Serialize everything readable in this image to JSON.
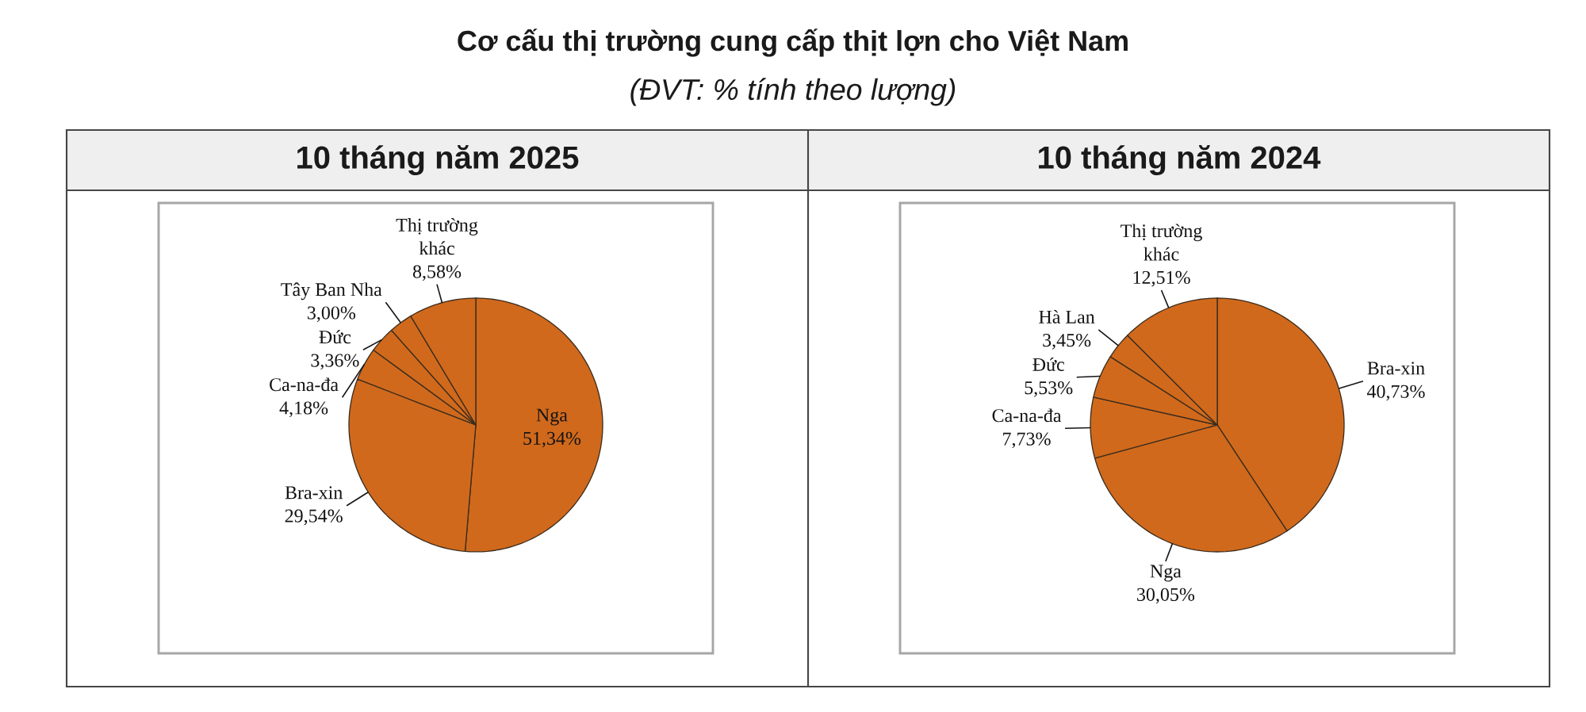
{
  "chart_data": [
    {
      "type": "other",
      "title": "Cơ cấu thị trường cung cấp thịt lợn cho Việt Nam",
      "subtitle": "(ĐVT: % tính theo lượng)"
    },
    {
      "type": "pie",
      "title": "10 tháng năm 2025",
      "categories": [
        "Nga",
        "Bra-xin",
        "Ca-na-đa",
        "Đức",
        "Tây Ban Nha",
        "Thị trường khác"
      ],
      "values": [
        51.34,
        29.54,
        4.18,
        3.36,
        3.0,
        8.58
      ],
      "value_labels": [
        "51,34%",
        "29,54%",
        "4,18%",
        "3,36%",
        "3,00%",
        "8,58%"
      ],
      "colors": [
        "#d0691c",
        "#d0691c",
        "#d0691c",
        "#d0691c",
        "#d0691c",
        "#d0691c"
      ]
    },
    {
      "type": "pie",
      "title": "10 tháng năm 2024",
      "categories": [
        "Bra-xin",
        "Nga",
        "Ca-na-đa",
        "Đức",
        "Hà Lan",
        "Thị trường khác"
      ],
      "values": [
        40.73,
        30.05,
        7.73,
        5.53,
        3.45,
        12.51
      ],
      "value_labels": [
        "40,73%",
        "30,05%",
        "7,73%",
        "5,53%",
        "3,45%",
        "12,51%"
      ],
      "colors": [
        "#d0691c",
        "#d0691c",
        "#d0691c",
        "#d0691c",
        "#d0691c",
        "#d0691c"
      ]
    }
  ]
}
